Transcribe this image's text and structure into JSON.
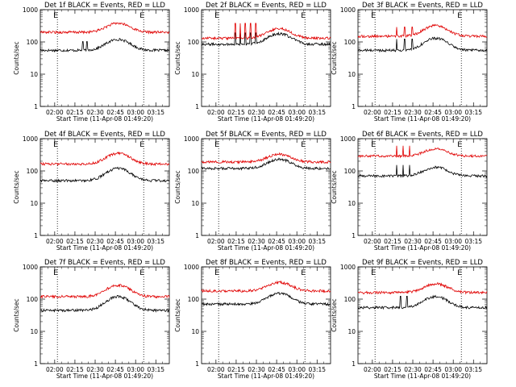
{
  "chart_data": {
    "type": "line",
    "shared": {
      "xlabel": "Start Time (11-Apr-08 01:49:20)",
      "ylabel": "Counts/sec",
      "x_ticks": [
        "02:00",
        "02:15",
        "02:30",
        "02:45",
        "03:00",
        "03:15"
      ],
      "y_ticks": [
        "1",
        "10",
        "100",
        "1000"
      ],
      "y_scale": "log",
      "ylim": [
        1,
        1000
      ],
      "xlim": [
        "01:49:20",
        "03:25"
      ],
      "event_markers": [
        {
          "time": "02:02",
          "label": "E"
        },
        {
          "time": "03:06",
          "label": "E"
        }
      ],
      "series_colors": {
        "events": "#000000",
        "lld": "#e00000"
      },
      "series_names": {
        "events": "Events",
        "lld": "LLD"
      }
    },
    "charts": [
      {
        "title": "Det 1f BLACK = Events, RED = LLD",
        "series": [
          {
            "name": "Events",
            "base": 55,
            "peak": 120,
            "spikes": [
              0.33,
              0.36
            ],
            "spike_h": 70
          },
          {
            "name": "LLD",
            "base": 200,
            "peak": 380,
            "spikes": [],
            "spike_h": 0
          }
        ]
      },
      {
        "title": "Det 2f BLACK = Events, RED = LLD",
        "series": [
          {
            "name": "Events",
            "base": 85,
            "peak": 180,
            "spikes": [
              0.26,
              0.3,
              0.34,
              0.38,
              0.42
            ],
            "spike_h": 140
          },
          {
            "name": "LLD",
            "base": 130,
            "peak": 260,
            "spikes": [
              0.26,
              0.3,
              0.34,
              0.38,
              0.42
            ],
            "spike_h": 300
          }
        ]
      },
      {
        "title": "Det 3f BLACK = Events, RED = LLD",
        "series": [
          {
            "name": "Events",
            "base": 55,
            "peak": 130,
            "spikes": [
              0.3,
              0.36,
              0.42
            ],
            "spike_h": 90
          },
          {
            "name": "LLD",
            "base": 150,
            "peak": 320,
            "spikes": [
              0.3,
              0.36,
              0.42
            ],
            "spike_h": 200
          }
        ]
      },
      {
        "title": "Det 4f BLACK = Events, RED = LLD",
        "series": [
          {
            "name": "Events",
            "base": 50,
            "peak": 120,
            "spikes": [],
            "spike_h": 0
          },
          {
            "name": "LLD",
            "base": 165,
            "peak": 350,
            "spikes": [],
            "spike_h": 0
          }
        ]
      },
      {
        "title": "Det 5f BLACK = Events, RED = LLD",
        "series": [
          {
            "name": "Events",
            "base": 120,
            "peak": 230,
            "spikes": [],
            "spike_h": 0
          },
          {
            "name": "LLD",
            "base": 190,
            "peak": 330,
            "spikes": [],
            "spike_h": 0
          }
        ]
      },
      {
        "title": "Det 6f BLACK = Events, RED = LLD",
        "series": [
          {
            "name": "Events",
            "base": 70,
            "peak": 130,
            "spikes": [
              0.3,
              0.35,
              0.4
            ],
            "spike_h": 110
          },
          {
            "name": "LLD",
            "base": 290,
            "peak": 480,
            "spikes": [
              0.3,
              0.35,
              0.4
            ],
            "spike_h": 430
          }
        ]
      },
      {
        "title": "Det 7f BLACK = Events, RED = LLD",
        "series": [
          {
            "name": "Events",
            "base": 45,
            "peak": 120,
            "spikes": [],
            "spike_h": 0
          },
          {
            "name": "LLD",
            "base": 120,
            "peak": 270,
            "spikes": [],
            "spike_h": 0
          }
        ]
      },
      {
        "title": "Det 8f BLACK = Events, RED = LLD",
        "series": [
          {
            "name": "Events",
            "base": 70,
            "peak": 150,
            "spikes": [],
            "spike_h": 0
          },
          {
            "name": "LLD",
            "base": 180,
            "peak": 330,
            "spikes": [],
            "spike_h": 0
          }
        ]
      },
      {
        "title": "Det 9f BLACK = Events, RED = LLD",
        "series": [
          {
            "name": "Events",
            "base": 55,
            "peak": 120,
            "spikes": [
              0.33,
              0.38
            ],
            "spike_h": 90
          },
          {
            "name": "LLD",
            "base": 160,
            "peak": 300,
            "spikes": [],
            "spike_h": 0
          }
        ]
      }
    ]
  }
}
